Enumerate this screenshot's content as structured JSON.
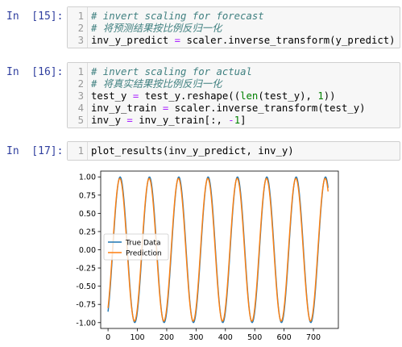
{
  "cells": [
    {
      "prompt": "In  [15]:",
      "lines": [
        {
          "n": "1",
          "parts": [
            {
              "t": "# invert scaling for forecast",
              "c": "cm"
            }
          ]
        },
        {
          "n": "2",
          "parts": [
            {
              "t": "# 将预测结果按比例反归一化",
              "c": "cm"
            }
          ]
        },
        {
          "n": "3",
          "parts": [
            {
              "t": "inv_y_predict ",
              "c": ""
            },
            {
              "t": "=",
              "c": "op"
            },
            {
              "t": " scaler.inverse_transform(y_predict)",
              "c": ""
            }
          ]
        }
      ]
    },
    {
      "prompt": "In  [16]:",
      "lines": [
        {
          "n": "1",
          "parts": [
            {
              "t": "# invert scaling for actual",
              "c": "cm"
            }
          ]
        },
        {
          "n": "2",
          "parts": [
            {
              "t": "# 将真实结果按比例反归一化",
              "c": "cm"
            }
          ]
        },
        {
          "n": "3",
          "parts": [
            {
              "t": "test_y ",
              "c": ""
            },
            {
              "t": "=",
              "c": "op"
            },
            {
              "t": " test_y.reshape((",
              "c": ""
            },
            {
              "t": "len",
              "c": "kw"
            },
            {
              "t": "(test_y), ",
              "c": ""
            },
            {
              "t": "1",
              "c": "num"
            },
            {
              "t": "))",
              "c": ""
            }
          ]
        },
        {
          "n": "4",
          "parts": [
            {
              "t": "inv_y_train ",
              "c": ""
            },
            {
              "t": "=",
              "c": "op"
            },
            {
              "t": " scaler.inverse_transform(test_y)",
              "c": ""
            }
          ]
        },
        {
          "n": "5",
          "parts": [
            {
              "t": "inv_y ",
              "c": ""
            },
            {
              "t": "=",
              "c": "op"
            },
            {
              "t": " inv_y_train[:, ",
              "c": ""
            },
            {
              "t": "-",
              "c": "op"
            },
            {
              "t": "1",
              "c": "num"
            },
            {
              "t": "]",
              "c": ""
            }
          ]
        }
      ]
    },
    {
      "prompt": "In  [17]:",
      "lines": [
        {
          "n": "1",
          "parts": [
            {
              "t": "plot_results(inv_y_predict, inv_y)",
              "c": ""
            }
          ]
        }
      ]
    }
  ],
  "chart_data": {
    "type": "line",
    "xlim": [
      -25,
      785
    ],
    "ylim": [
      -1.08,
      1.08
    ],
    "xticks": [
      "0",
      "100",
      "200",
      "300",
      "400",
      "500",
      "600",
      "700"
    ],
    "yticks": [
      "1.00",
      "0.75",
      "0.50",
      "0.25",
      "0.00",
      "-0.25",
      "-0.50",
      "-0.75",
      "-1.00"
    ],
    "x_range": [
      0,
      750
    ],
    "period": 100,
    "phase_shift": 35,
    "legend": "center-left",
    "grid": false,
    "series": [
      {
        "name": "True Data",
        "color": "#1f77b4",
        "amplitude": 1.0,
        "start": -0.85
      },
      {
        "name": "Prediction",
        "color": "#ff7f0e",
        "amplitude": 0.98,
        "start": -0.8
      }
    ]
  }
}
